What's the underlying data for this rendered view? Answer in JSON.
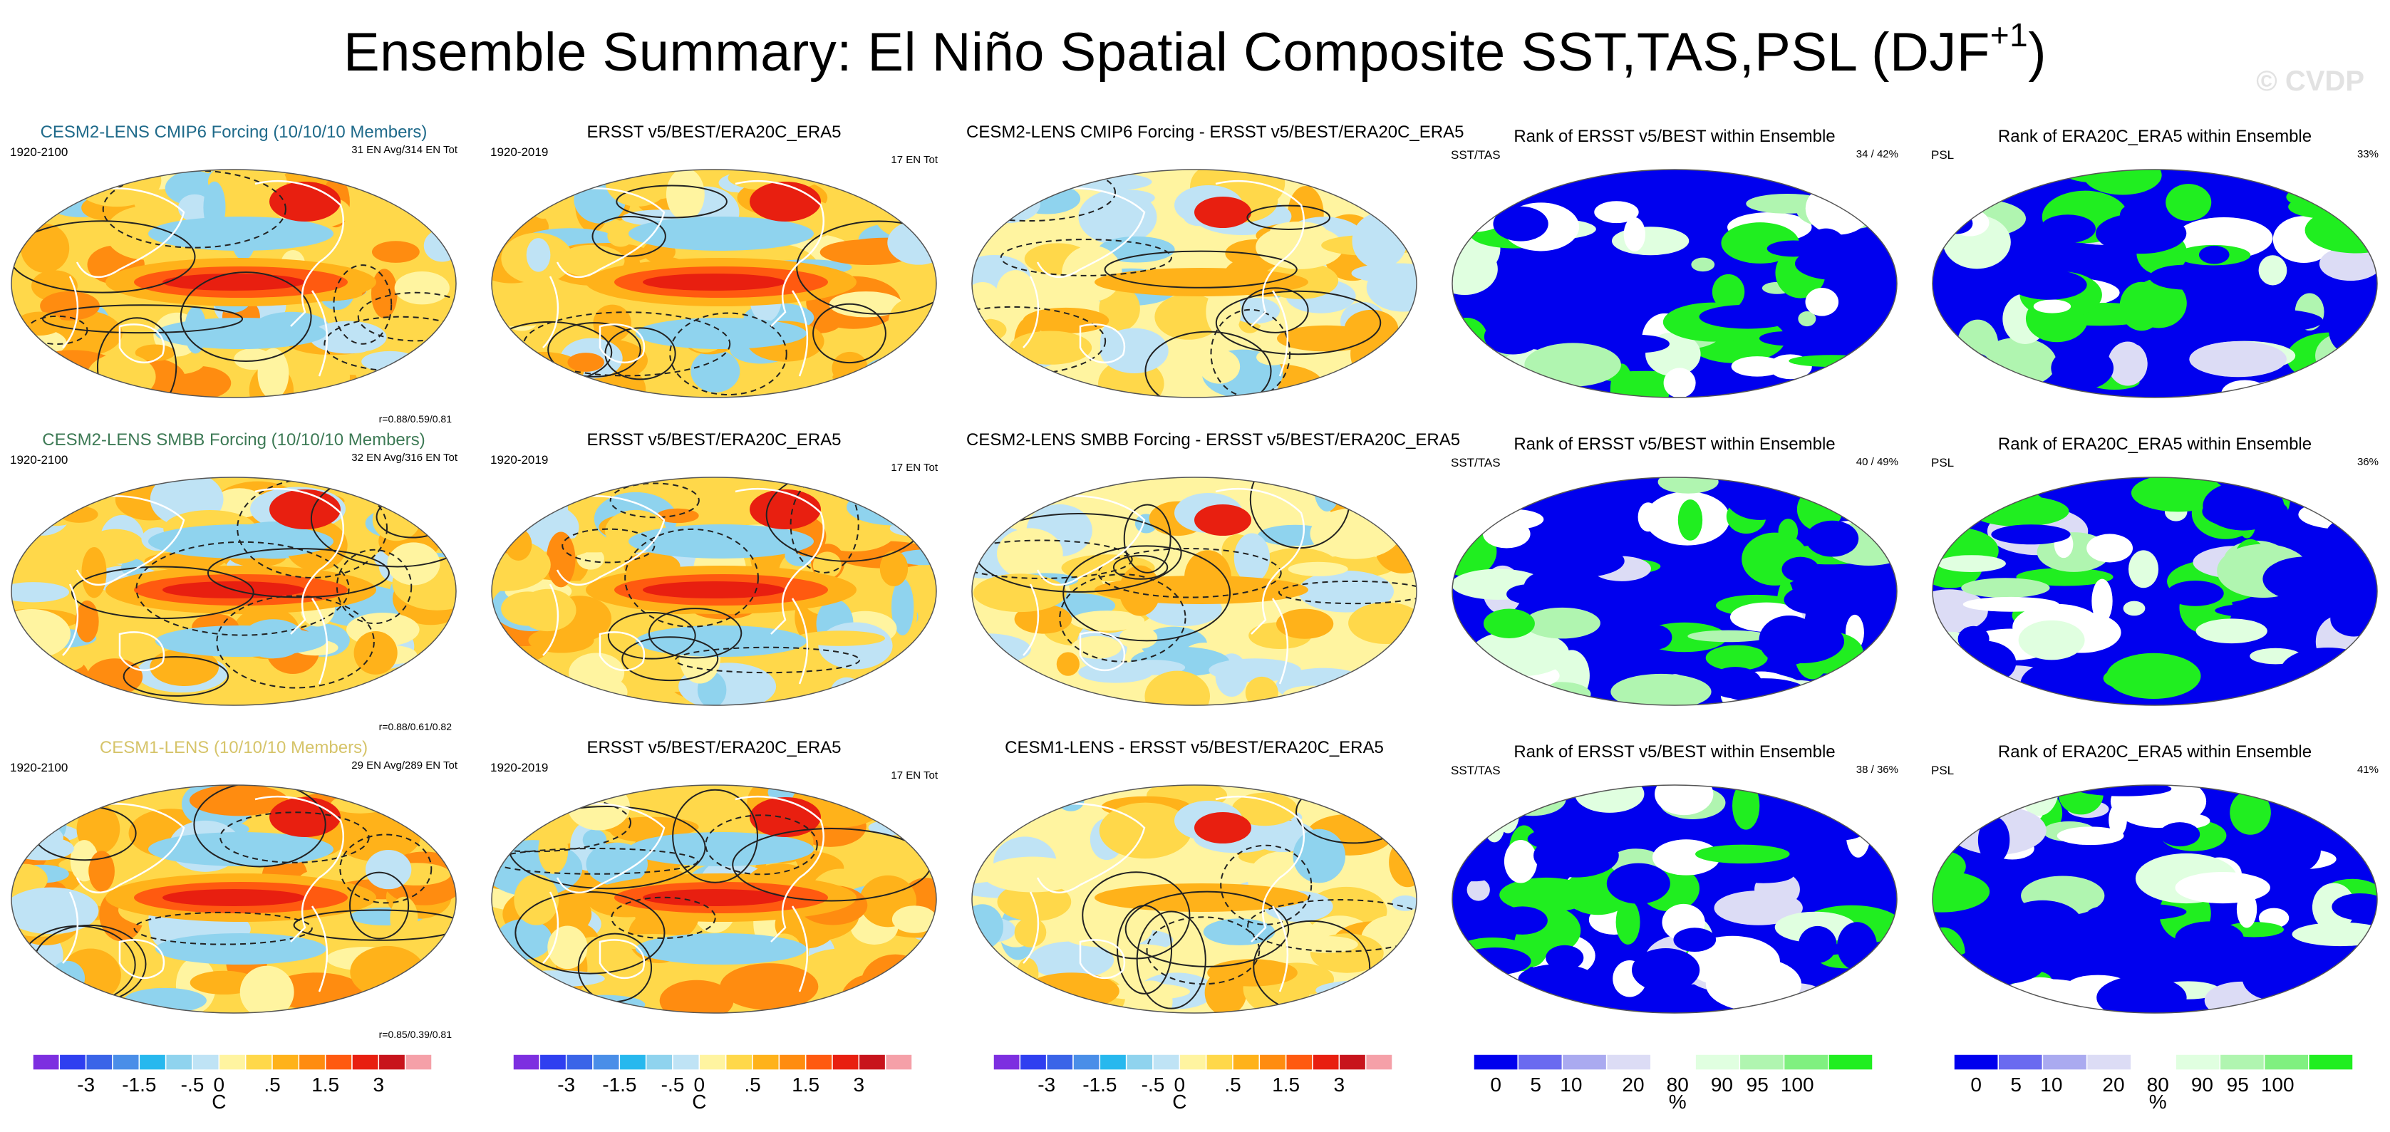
{
  "figure": {
    "title": "Ensemble Summary: El Niño Spatial Composite SST,TAS,PSL (DJF",
    "title_sup": "+1",
    "title_end": ")",
    "watermark": "© CVDP"
  },
  "colors": {
    "anom": [
      "#7d2fe0",
      "#2f3ff0",
      "#3a64e8",
      "#4a8ee8",
      "#27b8ee",
      "#8fd3ee",
      "#bfe3f5",
      "#fff4a0",
      "#ffd84a",
      "#ffb21a",
      "#ff8c10",
      "#ff5a10",
      "#e81f10",
      "#c8141c",
      "#f5a0a8"
    ],
    "rank": [
      "#0000ee",
      "#6a6af0",
      "#aaaaf0",
      "#dcdcf5",
      "#ffffff",
      "#e0ffe0",
      "#b0f5b0",
      "#80f080",
      "#20ee20"
    ],
    "contour": "#222222",
    "coast": "#ffffff",
    "title_cmip6": "#1f6a8a",
    "title_smbb": "#3d7a55",
    "title_cesm1": "#d6c46a"
  },
  "rows": [
    {
      "ens_title": "CESM2-LENS CMIP6 Forcing (10/10/10 Members)",
      "ens_period": "1920-2100",
      "ens_count": "31 EN Avg/314 EN Tot",
      "ens_corr": "r=0.88/0.59/0.81",
      "obs_title": "ERSST v5/BEST/ERA20C_ERA5",
      "obs_period": "1920-2019",
      "obs_count": "17 EN Tot",
      "diff_title": "CESM2-LENS CMIP6 Forcing - ERSST v5/BEST/ERA20C_ERA5",
      "rank1_title": "Rank of ERSST v5/BEST within Ensemble",
      "rank1_var": "SST/TAS",
      "rank1_pct": "34 /  42%",
      "rank2_title": "Rank of ERA20C_ERA5 within Ensemble",
      "rank2_var": "PSL",
      "rank2_pct": "33%"
    },
    {
      "ens_title": "CESM2-LENS SMBB Forcing (10/10/10 Members)",
      "ens_period": "1920-2100",
      "ens_count": "32 EN Avg/316 EN Tot",
      "ens_corr": "r=0.88/0.61/0.82",
      "obs_title": "ERSST v5/BEST/ERA20C_ERA5",
      "obs_period": "1920-2019",
      "obs_count": "17 EN Tot",
      "diff_title": "CESM2-LENS SMBB Forcing - ERSST v5/BEST/ERA20C_ERA5",
      "rank1_title": "Rank of ERSST v5/BEST within Ensemble",
      "rank1_var": "SST/TAS",
      "rank1_pct": "40 /  49%",
      "rank2_title": "Rank of ERA20C_ERA5 within Ensemble",
      "rank2_var": "PSL",
      "rank2_pct": "36%"
    },
    {
      "ens_title": "CESM1-LENS (10/10/10 Members)",
      "ens_period": "1920-2100",
      "ens_count": "29 EN Avg/289 EN Tot",
      "ens_corr": "r=0.85/0.39/0.81",
      "obs_title": "ERSST v5/BEST/ERA20C_ERA5",
      "obs_period": "1920-2019",
      "obs_count": "17 EN Tot",
      "diff_title": "CESM1-LENS - ERSST v5/BEST/ERA20C_ERA5",
      "rank1_title": "Rank of ERSST v5/BEST within Ensemble",
      "rank1_var": "SST/TAS",
      "rank1_pct": "38 /  36%",
      "rank2_title": "Rank of ERA20C_ERA5 within Ensemble",
      "rank2_var": "PSL",
      "rank2_pct": "41%"
    }
  ],
  "chart_data": [
    {
      "type": "heatmap",
      "role": "anomaly colorbar",
      "ticks": [
        "-3",
        "-1.5",
        "-.5",
        "0",
        ".5",
        "1.5",
        "3"
      ],
      "unit": "C"
    },
    {
      "type": "heatmap",
      "role": "rank colorbar",
      "ticks": [
        "0",
        "5",
        "10",
        "20",
        "80",
        "90",
        "95",
        "100"
      ],
      "unit": "%"
    }
  ]
}
